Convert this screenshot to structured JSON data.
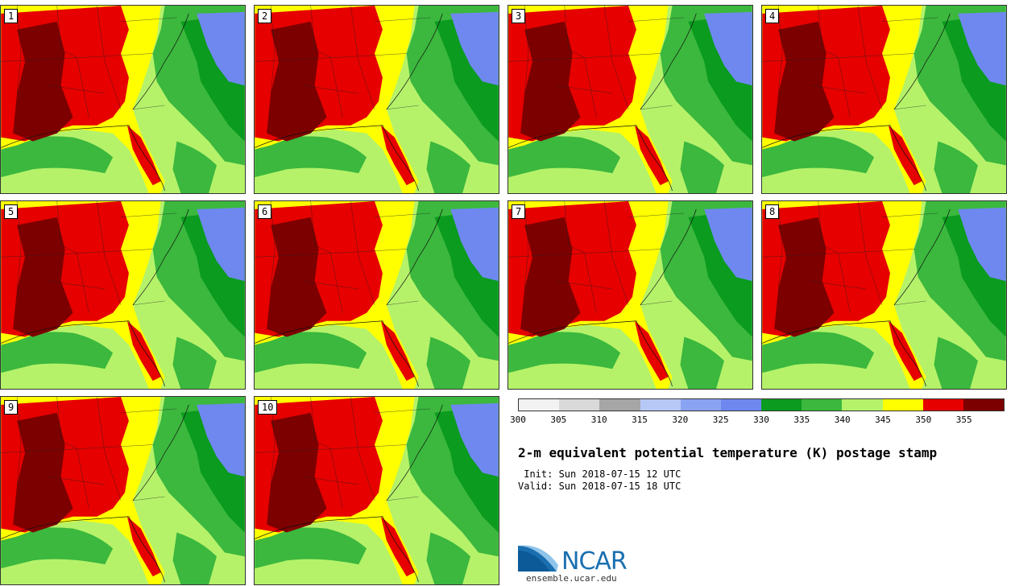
{
  "panels": [
    {
      "label": "1"
    },
    {
      "label": "2"
    },
    {
      "label": "3"
    },
    {
      "label": "4"
    },
    {
      "label": "5"
    },
    {
      "label": "6"
    },
    {
      "label": "7"
    },
    {
      "label": "8"
    },
    {
      "label": "9"
    },
    {
      "label": "10"
    }
  ],
  "colorbar": {
    "colors": [
      "#f2f2f2",
      "#d9d9d9",
      "#a6a6a6",
      "#b7c8f7",
      "#8aa3f2",
      "#6f88f0",
      "#0a9b1f",
      "#3bb83d",
      "#b5f26a",
      "#ffff00",
      "#e60000",
      "#7d0000"
    ],
    "ticks": [
      "300",
      "305",
      "310",
      "315",
      "320",
      "325",
      "330",
      "335",
      "340",
      "345",
      "350",
      "355"
    ]
  },
  "title": "2-m equivalent potential temperature (K) postage stamp",
  "init": " Init: Sun 2018-07-15 12 UTC",
  "valid": "Valid: Sun 2018-07-15 18 UTC",
  "logo": {
    "text": "NCAR",
    "url": "ensemble.ucar.edu"
  }
}
